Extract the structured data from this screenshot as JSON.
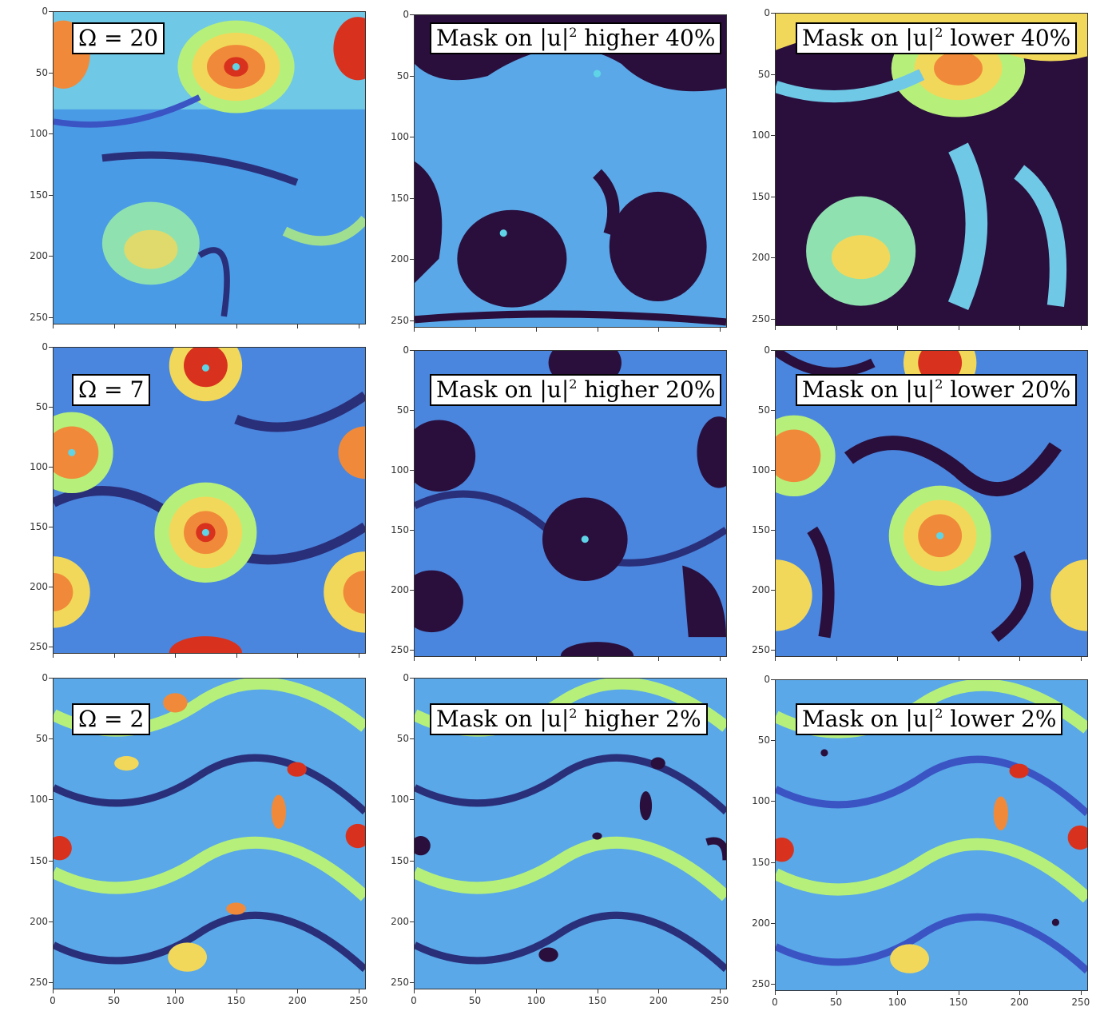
{
  "colors": {
    "jet_low": "#2a0f3d",
    "jet_blue": "#4a7bd6",
    "jet_cyan": "#5fd4e6",
    "jet_green": "#b6f07a",
    "jet_yellow": "#f2d85a",
    "jet_orange": "#f08a3a",
    "jet_red": "#d8321e",
    "mask": "#2a0f3d",
    "label_border": "#000000"
  },
  "axes": {
    "y_ticks": [
      "0",
      "50",
      "100",
      "150",
      "200",
      "250"
    ],
    "x_ticks": [
      "0",
      "50",
      "100",
      "150",
      "200",
      "250"
    ]
  },
  "panels": [
    {
      "label_pre": "Ω = 20",
      "label_sup": "",
      "label_post": "",
      "row": 0,
      "col": 0,
      "type": "field"
    },
    {
      "label_pre": "Mask on |u|",
      "label_sup": "2",
      "label_post": " higher 40%",
      "row": 0,
      "col": 1,
      "type": "mask-high"
    },
    {
      "label_pre": "Mask on |u|",
      "label_sup": "2",
      "label_post": " lower 40%",
      "row": 0,
      "col": 2,
      "type": "mask-low"
    },
    {
      "label_pre": "Ω = 7",
      "label_sup": "",
      "label_post": "",
      "row": 1,
      "col": 0,
      "type": "field"
    },
    {
      "label_pre": "Mask on |u|",
      "label_sup": "2",
      "label_post": " higher 20%",
      "row": 1,
      "col": 1,
      "type": "mask-high"
    },
    {
      "label_pre": "Mask on |u|",
      "label_sup": "2",
      "label_post": " lower 20%",
      "row": 1,
      "col": 2,
      "type": "mask-low"
    },
    {
      "label_pre": "Ω = 2",
      "label_sup": "",
      "label_post": "",
      "row": 2,
      "col": 0,
      "type": "field"
    },
    {
      "label_pre": "Mask on |u|",
      "label_sup": "2",
      "label_post": " higher 2%",
      "row": 2,
      "col": 1,
      "type": "mask-high"
    },
    {
      "label_pre": "Mask on |u|",
      "label_sup": "2",
      "label_post": " lower 2%",
      "row": 2,
      "col": 2,
      "type": "mask-low"
    }
  ]
}
